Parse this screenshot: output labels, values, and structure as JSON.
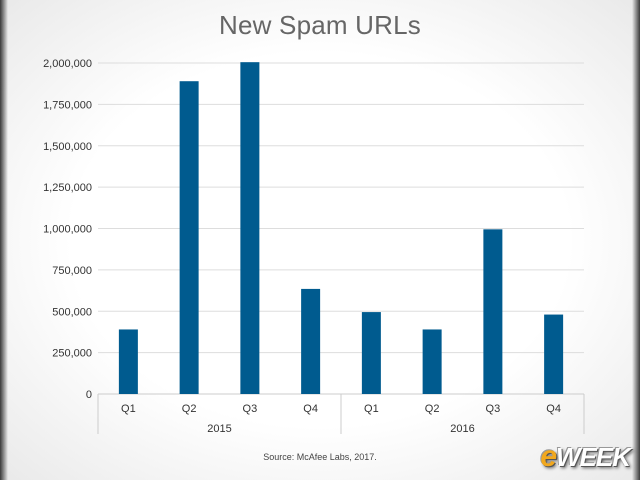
{
  "title": "New Spam URLs",
  "source": "Source: McAfee Labs, 2017.",
  "logo": {
    "prefix": "e",
    "text": "WEEK"
  },
  "colors": {
    "bar": "#005b8f",
    "grid": "#dddddd",
    "axis_text": "#333333"
  },
  "chart_data": {
    "type": "bar",
    "title": "New Spam URLs",
    "categories": [
      "Q1",
      "Q2",
      "Q3",
      "Q4",
      "Q1",
      "Q2",
      "Q3",
      "Q4"
    ],
    "groups": [
      {
        "label": "2015",
        "count": 4
      },
      {
        "label": "2016",
        "count": 4
      }
    ],
    "values": [
      390000,
      1890000,
      2005000,
      635000,
      495000,
      390000,
      995000,
      480000
    ],
    "ylim": [
      0,
      2000000
    ],
    "yticks": [
      0,
      250000,
      500000,
      750000,
      1000000,
      1250000,
      1500000,
      1750000,
      2000000
    ],
    "ytick_labels": [
      "0",
      "250,000",
      "500,000",
      "750,000",
      "1,000,000",
      "1,250,000",
      "1,500,000",
      "1,750,000",
      "2,000,000"
    ],
    "grid": true,
    "legend": "none"
  }
}
